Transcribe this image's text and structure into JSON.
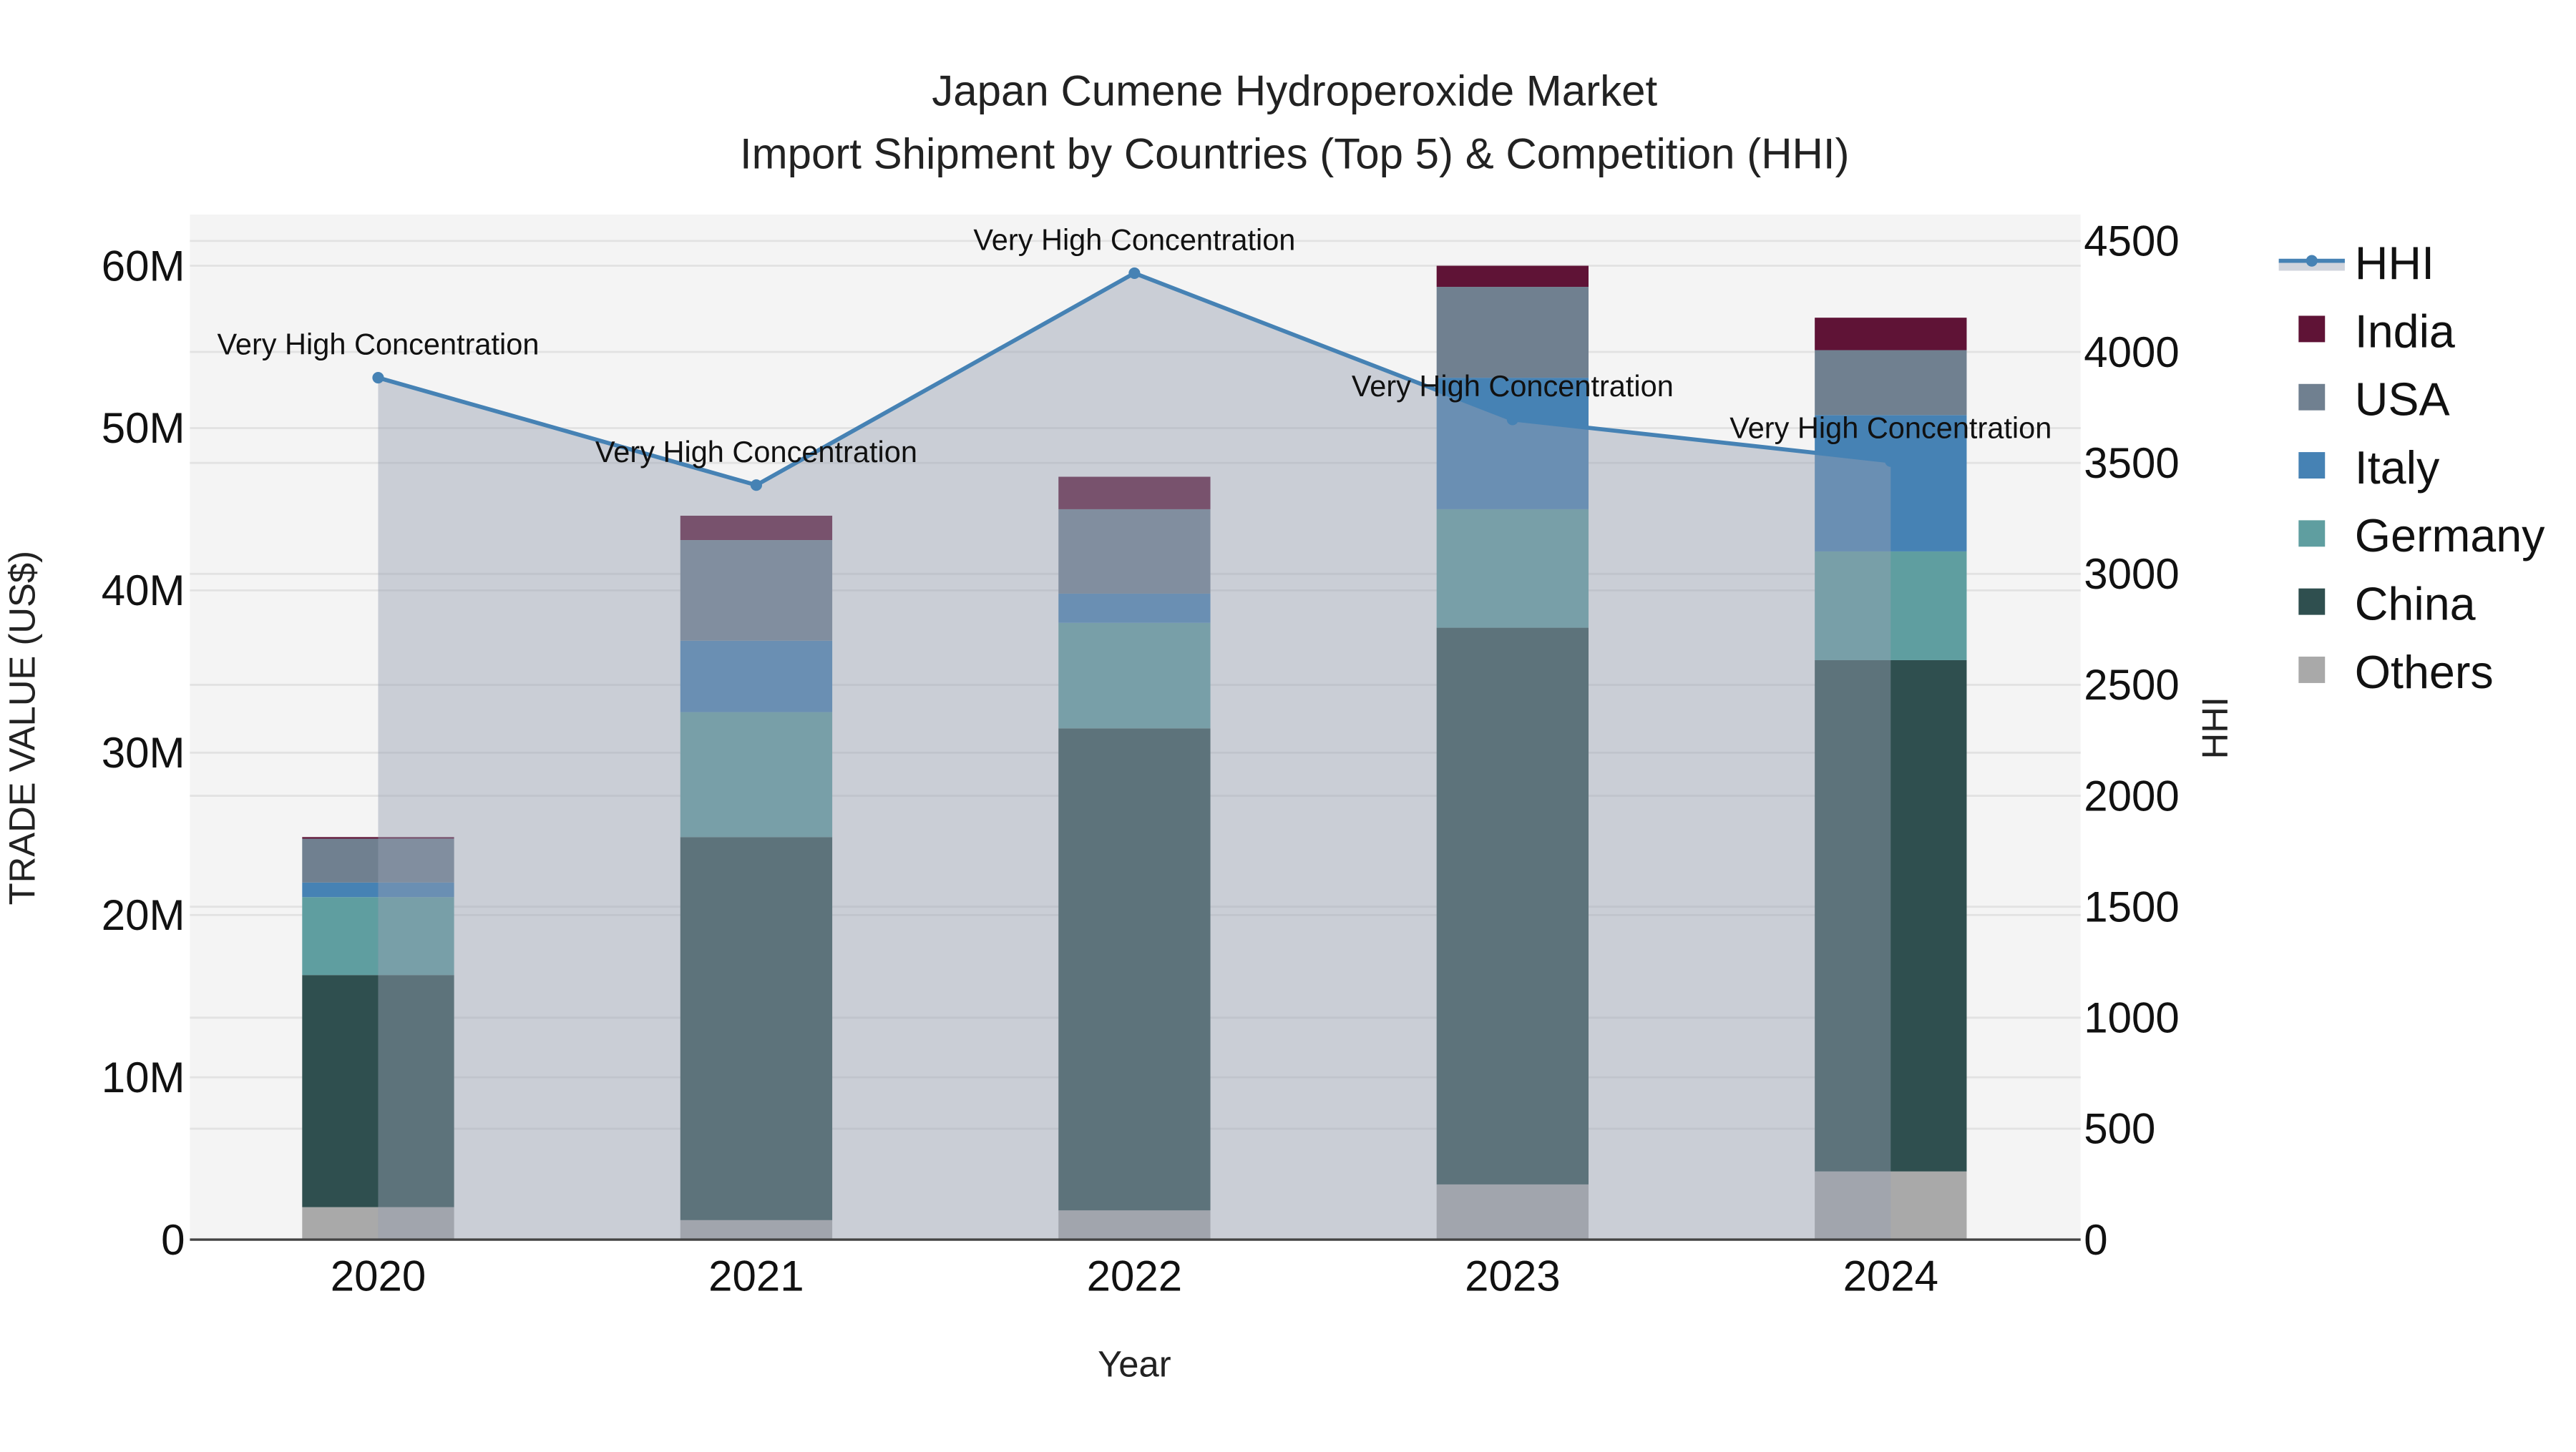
{
  "title": {
    "line1": "Japan Cumene Hydroperoxide Market",
    "line2": "Import Shipment by Countries (Top 5) & Competition (HHI)"
  },
  "colors": {
    "India": "#5f1336",
    "USA": "#708090",
    "Italy": "#4682b4",
    "Germany": "#5f9ea0",
    "China": "#2f4f4f",
    "Others": "#a9a9a9",
    "HHI_line": "#4682b4",
    "HHI_fill": "rgba(150,160,178,0.45)",
    "plot_bg": "#f4f4f4",
    "grid": "#e2e2e2"
  },
  "chart_data": {
    "type": "bar",
    "stacked": true,
    "title": "Japan Cumene Hydroperoxide Market — Import Shipment by Countries (Top 5) & Competition (HHI)",
    "xlabel": "Year",
    "ylabel": "TRADE VALUE (US$)",
    "y2label": "HHI",
    "categories": [
      "2020",
      "2021",
      "2022",
      "2023",
      "2024"
    ],
    "ylim": [
      0,
      63000000
    ],
    "y_ticks": [
      0,
      10000000,
      20000000,
      30000000,
      40000000,
      50000000,
      60000000
    ],
    "y_tick_labels": [
      "0",
      "10M",
      "20M",
      "30M",
      "40M",
      "50M",
      "60M"
    ],
    "y2lim": [
      0,
      4600
    ],
    "y2_ticks": [
      0,
      500,
      1000,
      1500,
      2000,
      2500,
      3000,
      3500,
      4000,
      4500
    ],
    "y2_tick_labels": [
      "0",
      "500",
      "1000",
      "1500",
      "2000",
      "2500",
      "3000",
      "3500",
      "4000",
      "4500"
    ],
    "series": [
      {
        "name": "Others",
        "values": [
          2000000,
          1200000,
          1800000,
          3400000,
          4200000
        ]
      },
      {
        "name": "China",
        "values": [
          14300000,
          23600000,
          29700000,
          34300000,
          31500000
        ]
      },
      {
        "name": "Germany",
        "values": [
          4800000,
          7700000,
          6500000,
          7300000,
          6700000
        ]
      },
      {
        "name": "Italy",
        "values": [
          900000,
          4400000,
          1800000,
          8100000,
          8400000
        ]
      },
      {
        "name": "USA",
        "values": [
          2700000,
          6200000,
          5200000,
          5600000,
          4000000
        ]
      },
      {
        "name": "India",
        "values": [
          100000,
          1500000,
          2000000,
          1300000,
          2000000
        ]
      }
    ],
    "line_series": {
      "name": "HHI",
      "axis": "y2",
      "values": [
        3884,
        3400,
        4355,
        3696,
        3508
      ],
      "fill": "tozeroy",
      "annotations": [
        "Very High Concentration",
        "Very High Concentration",
        "Very High Concentration",
        "Very High Concentration",
        "Very High Concentration"
      ]
    },
    "legend": [
      "HHI",
      "India",
      "USA",
      "Italy",
      "Germany",
      "China",
      "Others"
    ],
    "legend_position": "right",
    "grid": true
  }
}
